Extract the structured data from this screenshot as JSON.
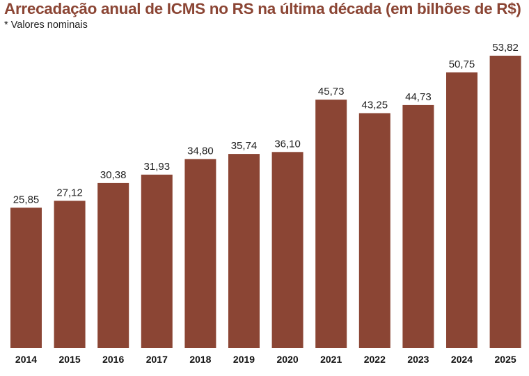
{
  "title": "Arrecadação anual de ICMS no RS na última década (em bilhões de R$)",
  "subtitle": "* Valores nominais",
  "colors": {
    "bar": "#8b4534",
    "title": "#8b4534",
    "background": "#ffffff"
  },
  "chart_data": {
    "type": "bar",
    "title": "Arrecadação anual de ICMS no RS na última década (em bilhões de R$)",
    "subtitle": "* Valores nominais",
    "categories": [
      "2014",
      "2015",
      "2016",
      "2017",
      "2018",
      "2019",
      "2020",
      "2021",
      "2022",
      "2023",
      "2024",
      "2025"
    ],
    "values": [
      25.85,
      27.12,
      30.38,
      31.93,
      34.8,
      35.74,
      36.1,
      45.73,
      43.25,
      44.73,
      50.75,
      53.82
    ],
    "value_labels": [
      "25,85",
      "27,12",
      "30,38",
      "31,93",
      "34,80",
      "35,74",
      "36,10",
      "45,73",
      "43,25",
      "44,73",
      "50,75",
      "53,82"
    ],
    "xlabel": "",
    "ylabel": "",
    "ylim": [
      0,
      53.82
    ],
    "grid": false,
    "legend": "none"
  }
}
